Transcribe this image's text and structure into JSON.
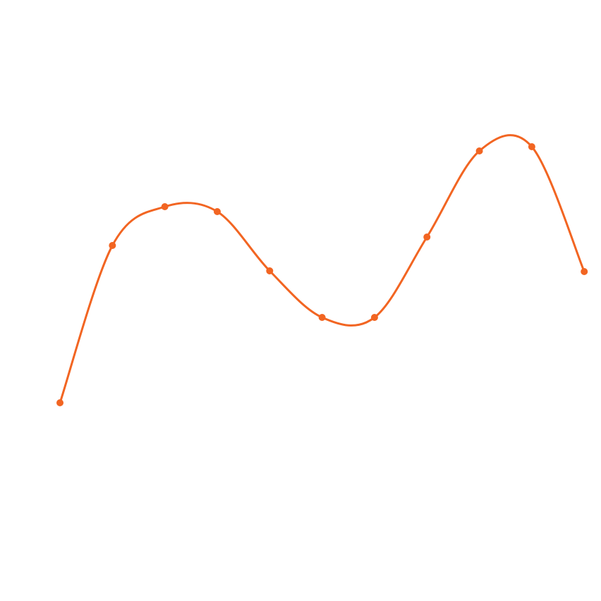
{
  "chart_data": {
    "type": "line",
    "title": "",
    "xlabel": "",
    "ylabel": "",
    "x": [
      0,
      1,
      2,
      3,
      4,
      5,
      6,
      7,
      8,
      9,
      10
    ],
    "series": [
      {
        "values": [
          0.29,
          2.52,
          3.07,
          3.0,
          2.16,
          1.5,
          1.5,
          2.64,
          3.86,
          3.92,
          2.15
        ],
        "color": "#f26522"
      }
    ],
    "xlim": [
      -1.144,
      10.32
    ],
    "ylim": [
      -2.52,
      6.0
    ],
    "grid": false,
    "axes_visible": false,
    "smooth": true,
    "markers": true
  }
}
